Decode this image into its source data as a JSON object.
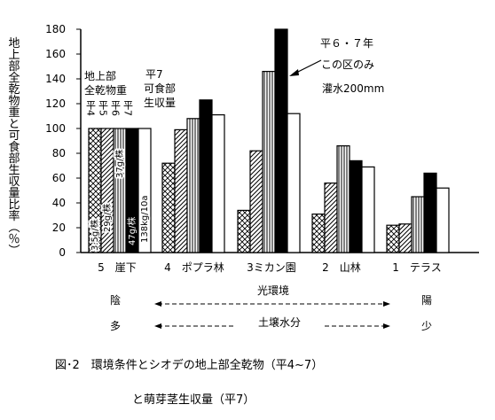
{
  "chart_data": {
    "type": "bar",
    "ylabel": "地上部全乾物重と可食部生収量比率（％）",
    "ylim": [
      0,
      180
    ],
    "yticks": [
      0,
      20,
      40,
      60,
      80,
      100,
      120,
      140,
      160,
      180
    ],
    "categories": [
      "5　崖下",
      "4　ポプラ林",
      "3ミカン園",
      "2　山林",
      "1　テラス"
    ],
    "series": [
      {
        "name": "平4",
        "pattern": "crosshatch",
        "values": [
          100,
          72,
          34,
          31,
          22
        ]
      },
      {
        "name": "平5",
        "pattern": "diagonal",
        "values": [
          100,
          99,
          82,
          56,
          23
        ]
      },
      {
        "name": "平6",
        "pattern": "vertical",
        "values": [
          100,
          108,
          146,
          86,
          45
        ]
      },
      {
        "name": "平7",
        "pattern": "solid",
        "values": [
          100,
          123,
          180,
          74,
          64
        ]
      },
      {
        "name": "平7 可食部生収量",
        "pattern": "white",
        "values": [
          100,
          111,
          112,
          69,
          52
        ]
      }
    ],
    "legend_group1": {
      "title": [
        "地上部",
        "全乾物重"
      ],
      "items": [
        "平4",
        "平5",
        "平6",
        "平7"
      ]
    },
    "legend_group2": [
      "平7",
      "可食部",
      "生収量"
    ],
    "bar_labels": [
      "3.5g/株",
      "29g/株",
      "37g/株",
      "47g/株",
      "138kg/10a"
    ],
    "annotation": [
      "平６・７年",
      "この区のみ",
      "灌水200mm"
    ]
  },
  "gradient": {
    "left_top": "陰",
    "left_bottom": "多",
    "center_top": "光環境",
    "center_bottom": "土壌水分",
    "right_top": "陽",
    "right_bottom": "少"
  },
  "caption": {
    "line1": "図･2　環境条件とシオデの地上部全乾物（平4~7）",
    "line2": "と萌芽茎生収量（平7）"
  }
}
